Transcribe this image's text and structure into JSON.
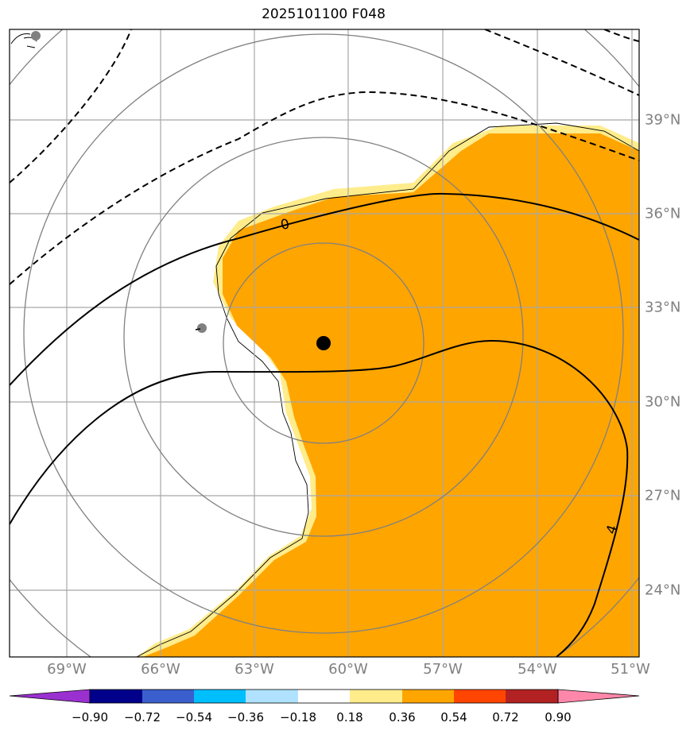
{
  "title": "2025101100 F048",
  "lon_labels": [
    "69°W",
    "66°W",
    "63°W",
    "60°W",
    "57°W",
    "54°W",
    "51°W"
  ],
  "lat_labels": [
    "39°N",
    "36°N",
    "33°N",
    "30°N",
    "27°N",
    "24°N"
  ],
  "contour_labels": [
    "0",
    "4"
  ],
  "colorbar": {
    "ticks": [
      "−0.90",
      "−0.72",
      "−0.54",
      "−0.36",
      "−0.18",
      "0.18",
      "0.36",
      "0.54",
      "0.72",
      "0.90"
    ],
    "colors": [
      "#9b30d0",
      "#00008b",
      "#3a5fcd",
      "#00bfff",
      "#b0e2ff",
      "#ffffff",
      "#ffec8b",
      "#ffa500",
      "#ff4500",
      "#b22222",
      "#ff88aa"
    ]
  },
  "map_features": {
    "fill_colors": {
      "pale": "#ffec8b",
      "orange": "#ffa500"
    },
    "center_marker": "black-dot",
    "secondary_markers": [
      "gray-dot",
      "gray-dot"
    ]
  }
}
